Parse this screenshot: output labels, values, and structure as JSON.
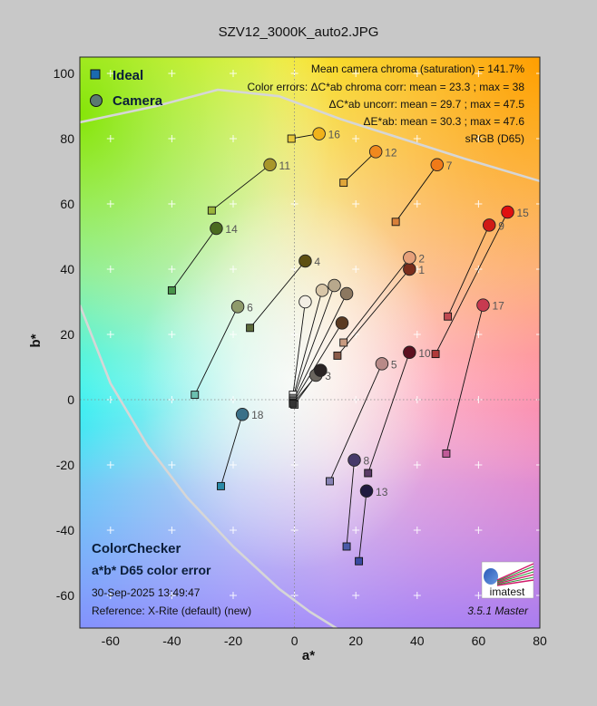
{
  "figure": {
    "title": "SZV12_3000K_auto2.JPG"
  },
  "chart_data": {
    "type": "scatter",
    "title": "SZV12_3000K_auto2.JPG",
    "xlabel": "a*",
    "ylabel": "b*",
    "xlim": [
      -70,
      80
    ],
    "ylim": [
      -70,
      105
    ],
    "xticks": [
      -60,
      -40,
      -20,
      0,
      20,
      40,
      60,
      80
    ],
    "yticks": [
      -60,
      -40,
      -20,
      0,
      20,
      40,
      60,
      80,
      100
    ],
    "grid": true,
    "legend_position": "top-left",
    "legend": [
      {
        "name": "Ideal",
        "marker": "square"
      },
      {
        "name": "Camera",
        "marker": "circle"
      }
    ],
    "background": "a*b* color gamut map",
    "patches": [
      {
        "id": 1,
        "label": "1",
        "ideal": [
          14,
          13.5
        ],
        "camera": [
          37.5,
          40
        ],
        "ideal_color": "#8a5a48",
        "camera_color": "#7a2e1c"
      },
      {
        "id": 2,
        "label": "2",
        "ideal": [
          16,
          17.5
        ],
        "camera": [
          37.5,
          43.5
        ],
        "ideal_color": "#c89a80",
        "camera_color": "#e6a07a"
      },
      {
        "id": 3,
        "label": "3",
        "ideal": [
          0,
          -1.5
        ],
        "camera": [
          7,
          7.5
        ],
        "ideal_color": "#bdbdbd",
        "camera_color": "#6a655e"
      },
      {
        "id": 4,
        "label": "4",
        "ideal": [
          -14.5,
          22
        ],
        "camera": [
          3.5,
          42.5
        ],
        "ideal_color": "#5c6a3a",
        "camera_color": "#5e5012"
      },
      {
        "id": 5,
        "label": "5",
        "ideal": [
          11.5,
          -25
        ],
        "camera": [
          28.5,
          11
        ],
        "ideal_color": "#8682b3",
        "camera_color": "#b88a88"
      },
      {
        "id": 6,
        "label": "6",
        "ideal": [
          -32.5,
          1.5
        ],
        "camera": [
          -18.5,
          28.5
        ],
        "ideal_color": "#6cc0b0",
        "camera_color": "#8e9a6a"
      },
      {
        "id": 7,
        "label": "7",
        "ideal": [
          33,
          54.5
        ],
        "camera": [
          46.5,
          72
        ],
        "ideal_color": "#d8803a",
        "camera_color": "#f07a18"
      },
      {
        "id": 8,
        "label": "8",
        "ideal": [
          17,
          -45
        ],
        "camera": [
          19.5,
          -18.5
        ],
        "ideal_color": "#4a5aa8",
        "camera_color": "#463a6a"
      },
      {
        "id": 9,
        "label": "9",
        "ideal": [
          50,
          25.5
        ],
        "camera": [
          63.5,
          53.5
        ],
        "ideal_color": "#c04a52",
        "camera_color": "#d01a16"
      },
      {
        "id": 10,
        "label": "10",
        "ideal": [
          24,
          -22.5
        ],
        "camera": [
          37.5,
          14.5
        ],
        "ideal_color": "#5a3a66",
        "camera_color": "#5c1020"
      },
      {
        "id": 11,
        "label": "11",
        "ideal": [
          -27,
          58
        ],
        "camera": [
          -8,
          72
        ],
        "ideal_color": "#9ab43a",
        "camera_color": "#a8962a"
      },
      {
        "id": 12,
        "label": "12",
        "ideal": [
          16,
          66.5
        ],
        "camera": [
          26.5,
          76
        ],
        "ideal_color": "#e0a63a",
        "camera_color": "#f0881e"
      },
      {
        "id": 13,
        "label": "13",
        "ideal": [
          21,
          -49.5
        ],
        "camera": [
          23.5,
          -28
        ],
        "ideal_color": "#3a4aa0",
        "camera_color": "#201a40"
      },
      {
        "id": 14,
        "label": "14",
        "ideal": [
          -40,
          33.5
        ],
        "camera": [
          -25.5,
          52.5
        ],
        "ideal_color": "#48944a",
        "camera_color": "#4a6a20"
      },
      {
        "id": 15,
        "label": "15",
        "ideal": [
          46,
          14
        ],
        "camera": [
          69.5,
          57.5
        ],
        "ideal_color": "#b03a3a",
        "camera_color": "#e01010"
      },
      {
        "id": 16,
        "label": "16",
        "ideal": [
          -1,
          80
        ],
        "camera": [
          8,
          81.5
        ],
        "ideal_color": "#e8c83a",
        "camera_color": "#f0b21a"
      },
      {
        "id": 17,
        "label": "17",
        "ideal": [
          49.5,
          -16.5
        ],
        "camera": [
          61.5,
          29
        ],
        "ideal_color": "#c05a98",
        "camera_color": "#c83a50"
      },
      {
        "id": 18,
        "label": "18",
        "ideal": [
          -24,
          -26.5
        ],
        "camera": [
          -17,
          -4.5
        ],
        "ideal_color": "#2a8aa8",
        "camera_color": "#3a7088"
      },
      {
        "id": 19,
        "label": "",
        "ideal": [
          -0.5,
          1.5
        ],
        "camera": [
          3.5,
          30
        ],
        "ideal_color": "#f4f4f4",
        "camera_color": "#f2eee4"
      },
      {
        "id": 20,
        "label": "",
        "ideal": [
          -0.5,
          0.5
        ],
        "camera": [
          9,
          33.5
        ],
        "ideal_color": "#cccccc",
        "camera_color": "#d8c6a8"
      },
      {
        "id": 21,
        "label": "",
        "ideal": [
          -0.5,
          0
        ],
        "camera": [
          13,
          35
        ],
        "ideal_color": "#a0a0a0",
        "camera_color": "#b8a88c"
      },
      {
        "id": 22,
        "label": "",
        "ideal": [
          -0.5,
          -0.5
        ],
        "camera": [
          17,
          32.5
        ],
        "ideal_color": "#7a7a7a",
        "camera_color": "#8c7860"
      },
      {
        "id": 23,
        "label": "",
        "ideal": [
          -0.5,
          -1
        ],
        "camera": [
          15.5,
          23.5
        ],
        "ideal_color": "#555555",
        "camera_color": "#5a3a22"
      },
      {
        "id": 24,
        "label": "",
        "ideal": [
          -0.5,
          -1.2
        ],
        "camera": [
          8.5,
          9
        ],
        "ideal_color": "#333333",
        "camera_color": "#2a2424"
      }
    ],
    "gamut_boundary": {
      "upper": [
        [
          -70,
          85
        ],
        [
          -45,
          90
        ],
        [
          -25,
          95
        ],
        [
          -5,
          93
        ],
        [
          15,
          86
        ],
        [
          35,
          80
        ],
        [
          55,
          74
        ],
        [
          80,
          67
        ]
      ],
      "lower": [
        [
          -70,
          29
        ],
        [
          -60,
          5
        ],
        [
          -48,
          -14
        ],
        [
          -35,
          -30
        ],
        [
          -20,
          -45
        ],
        [
          -5,
          -58
        ],
        [
          5,
          -65
        ],
        [
          17,
          -72
        ]
      ]
    }
  },
  "info": {
    "line1": "Mean camera chroma (saturation) = 141.7%",
    "line2": "Color errors: ΔC*ab chroma corr:  mean = 23.3 ;  max = 38",
    "line3": "ΔC*ab uncorr:  mean = 29.7 ;  max = 47.5",
    "line4": "ΔE*ab:  mean = 30.3 ;  max = 47.6",
    "line5": "sRGB (D65)"
  },
  "bottom": {
    "title": "ColorChecker",
    "subtitle": "a*b* D65 color error",
    "date": "30-Sep-2025 13:49:47",
    "reference": "Reference: X-Rite (default) (new)",
    "version": "3.5.1  Master",
    "logo_text": "imatest"
  }
}
